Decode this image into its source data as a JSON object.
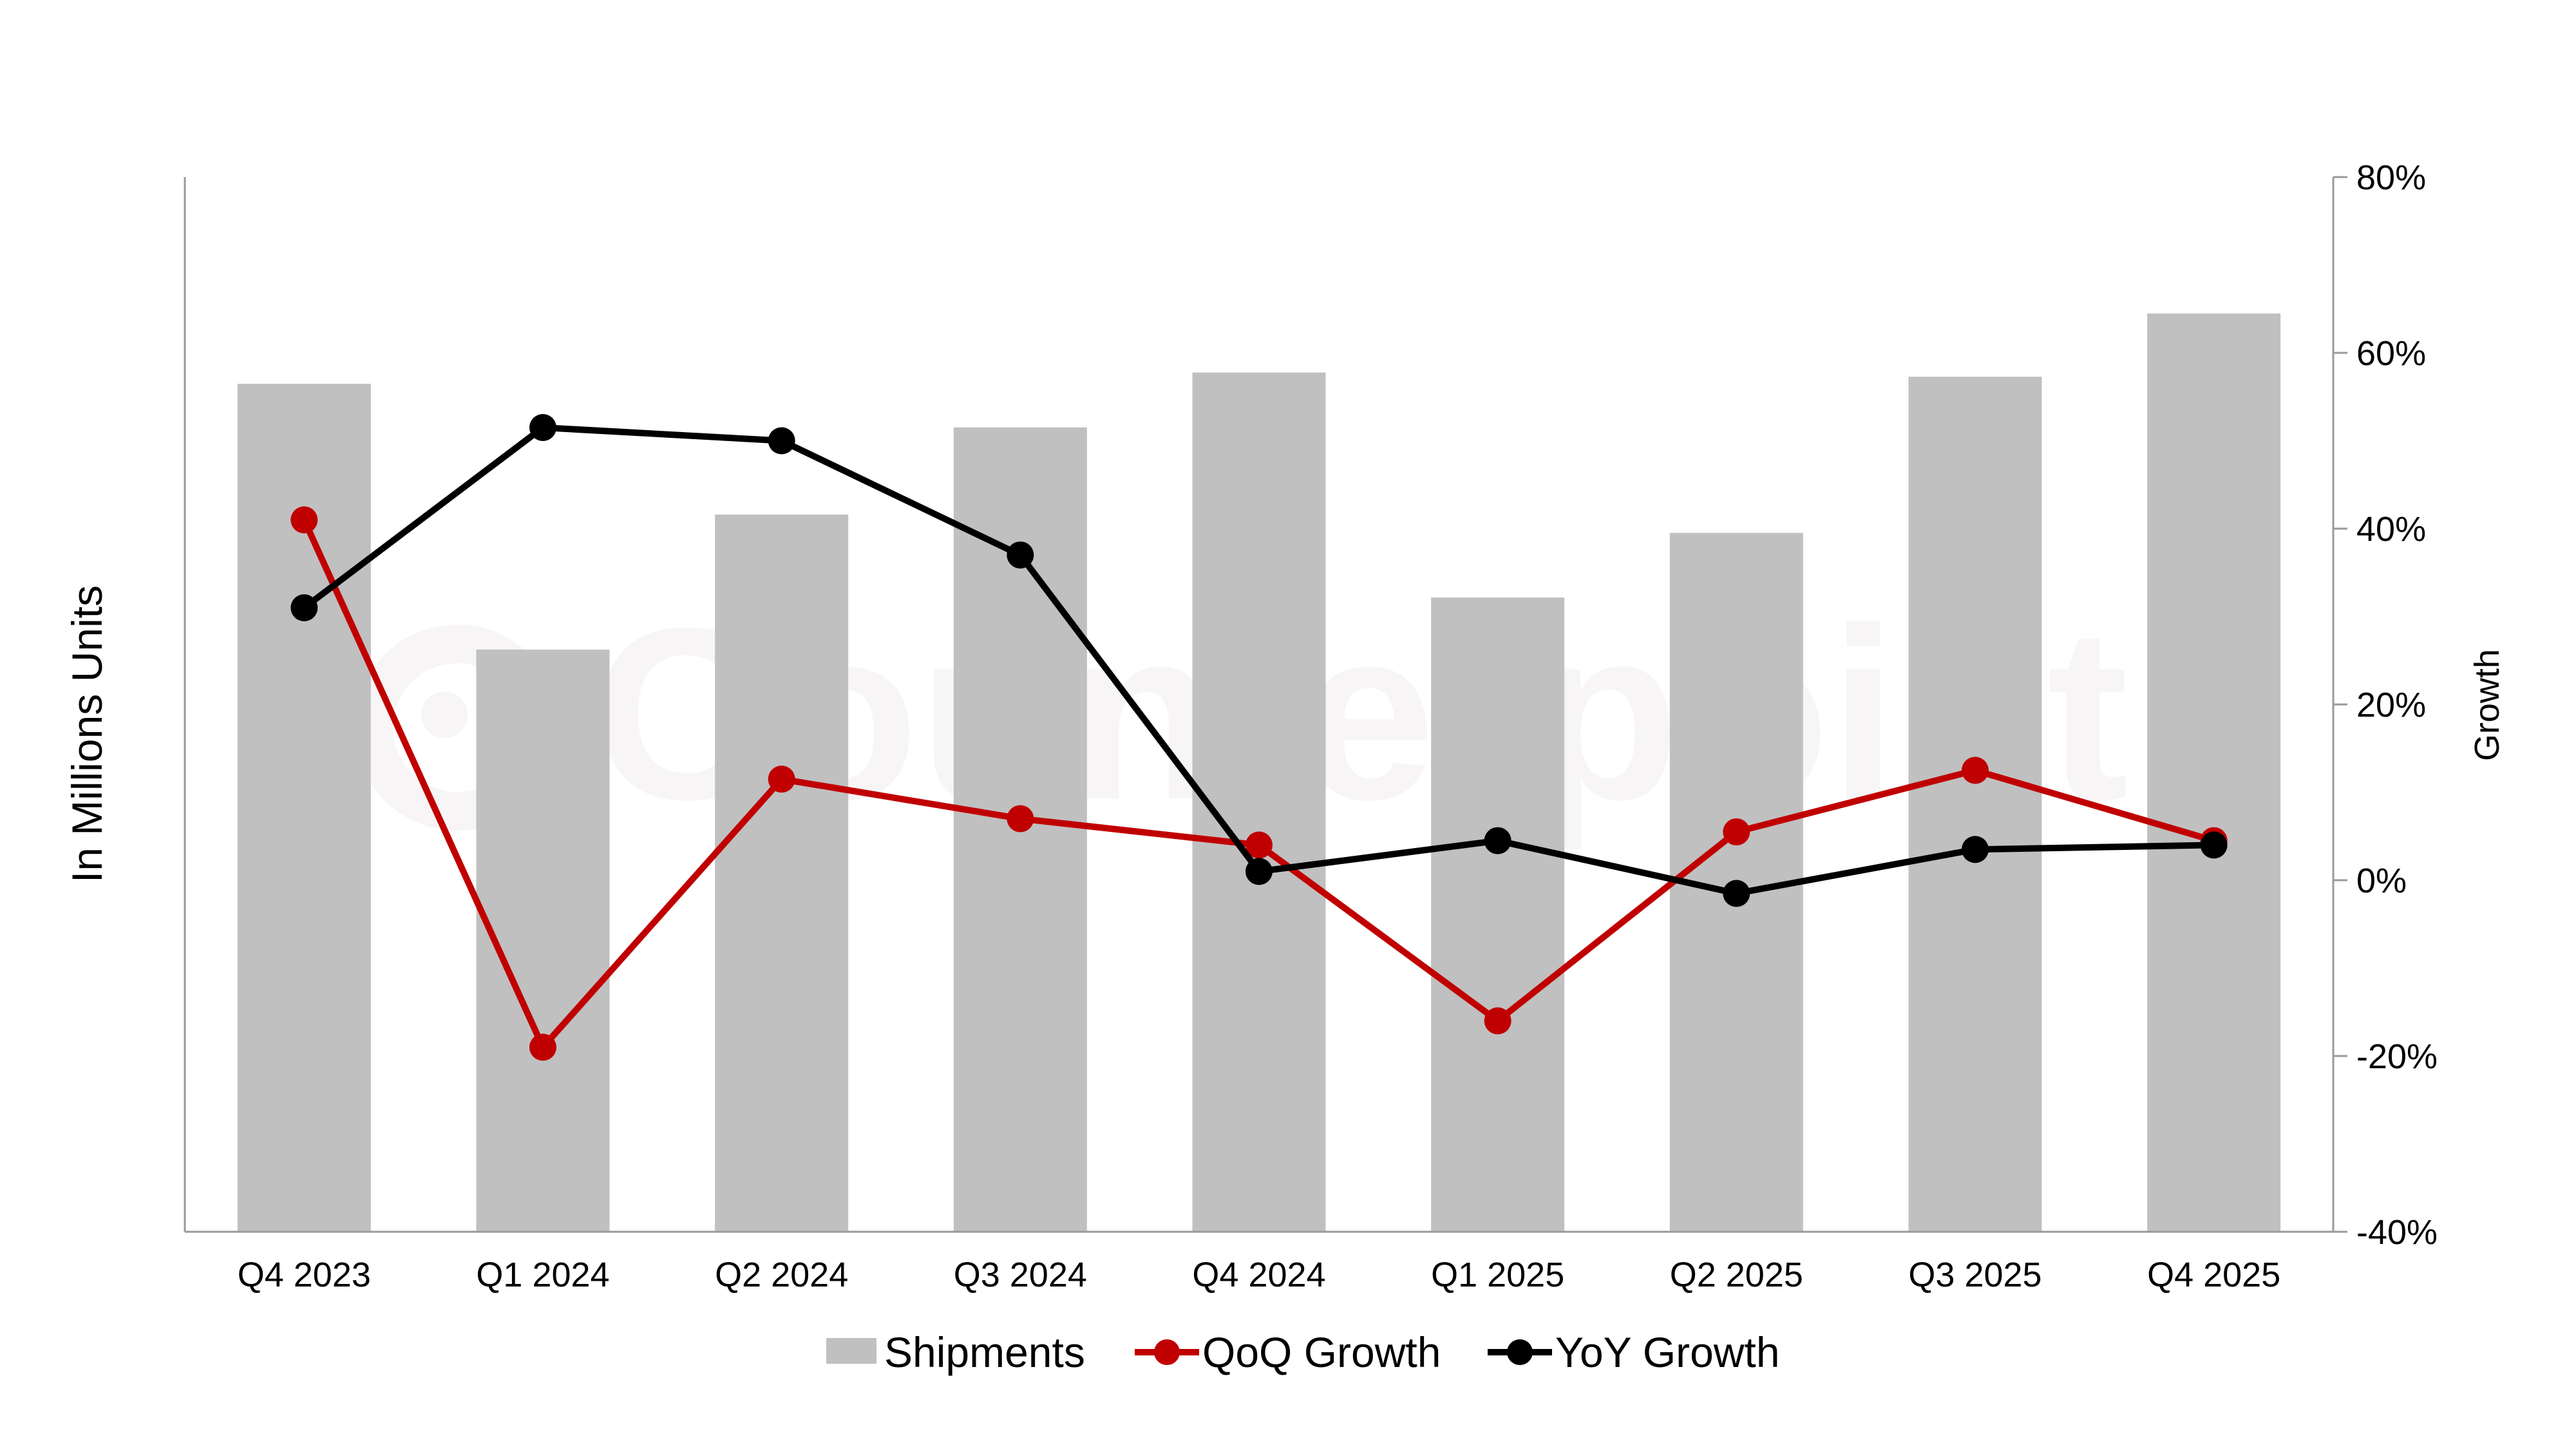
{
  "chart_data": {
    "type": "bar",
    "categories": [
      "Q4 2023",
      "Q1 2024",
      "Q2 2024",
      "Q3 2024",
      "Q4 2024",
      "Q1 2025",
      "Q2 2025",
      "Q3 2025",
      "Q4 2025"
    ],
    "series": [
      {
        "name": "Shipments",
        "type": "bar",
        "axis": "left",
        "color": "#c0c0c0",
        "values": [
          60.3,
          41.4,
          51.0,
          57.2,
          61.1,
          45.1,
          49.7,
          60.8,
          65.3
        ]
      },
      {
        "name": "QoQ Growth",
        "type": "line",
        "axis": "right",
        "color": "#c00000",
        "values": [
          41,
          -19,
          11.5,
          7,
          4,
          -16,
          5.5,
          12.5,
          4.5
        ]
      },
      {
        "name": "YoY Growth",
        "type": "line",
        "axis": "right",
        "color": "#000000",
        "values": [
          31,
          51.5,
          50,
          37,
          1,
          4.5,
          -1.5,
          3.5,
          4
        ]
      }
    ],
    "title": "",
    "ylabel": "In Millions Units",
    "y2label": "Growth",
    "ylim": [
      0,
      75
    ],
    "y2lim": [
      -40,
      80
    ],
    "y2ticks": [
      "80%",
      "60%",
      "40%",
      "20%",
      "0%",
      "-20%",
      "-40%"
    ],
    "y2tick_values": [
      80,
      60,
      40,
      20,
      0,
      -20,
      -40
    ],
    "legend_position": "bottom",
    "grid": false
  },
  "watermark": "Counterpoint"
}
